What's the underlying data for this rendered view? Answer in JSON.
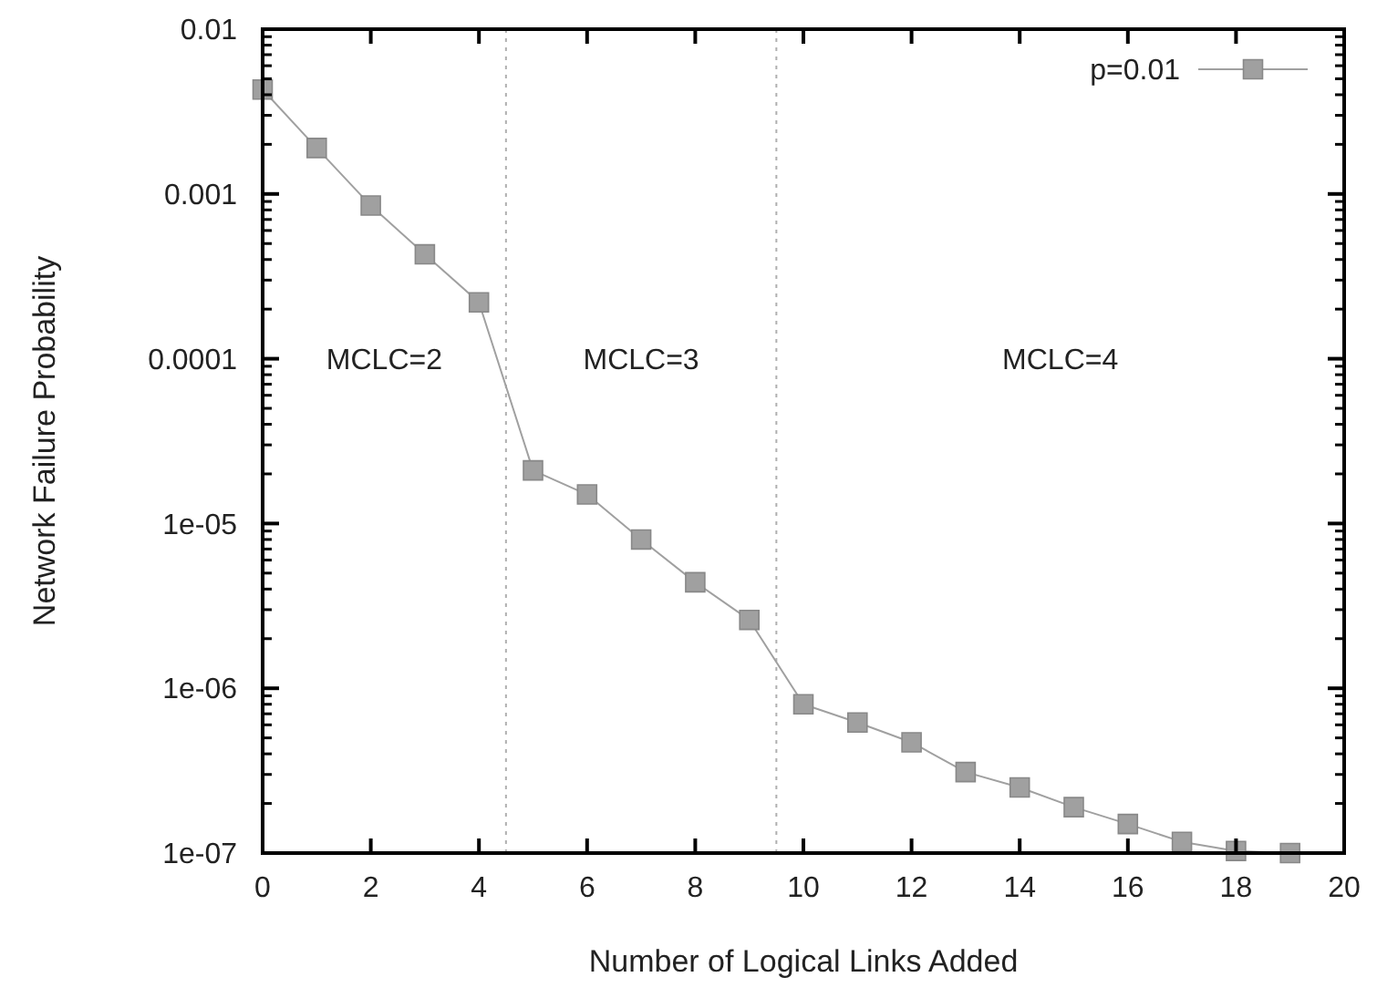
{
  "chart_data": {
    "type": "line",
    "xlabel": "Number of Logical Links Added",
    "ylabel": "Network Failure Probability",
    "x": [
      0,
      1,
      2,
      3,
      4,
      5,
      6,
      7,
      8,
      9,
      10,
      11,
      12,
      13,
      14,
      15,
      16,
      17,
      18,
      19
    ],
    "series": [
      {
        "name": "p=0.01",
        "color": "#a0a0a0",
        "values": [
          0.0043,
          0.0019,
          0.00085,
          0.00043,
          0.00022,
          2.1e-05,
          1.5e-05,
          8e-06,
          4.4e-06,
          2.6e-06,
          8e-07,
          6.2e-07,
          4.7e-07,
          3.1e-07,
          2.5e-07,
          1.9e-07,
          1.5e-07,
          1.17e-07,
          1.03e-07,
          1e-07
        ]
      }
    ],
    "log": "y",
    "xlim": [
      0,
      20
    ],
    "xticks": [
      0,
      2,
      4,
      6,
      8,
      10,
      12,
      14,
      16,
      18,
      20
    ],
    "ylim": [
      1e-07,
      0.01
    ],
    "yticks": [
      {
        "value": 1e-07,
        "label": "1e-07"
      },
      {
        "value": 1e-06,
        "label": "1e-06"
      },
      {
        "value": 1e-05,
        "label": "1e-05"
      },
      {
        "value": 0.0001,
        "label": "0.0001"
      },
      {
        "value": 0.001,
        "label": "0.001"
      },
      {
        "value": 0.01,
        "label": "0.01"
      }
    ],
    "ref_lines": [
      {
        "axis": "x",
        "value": 4.5,
        "color": "#b0b0b0",
        "line_style": "dotted"
      },
      {
        "axis": "x",
        "value": 9.5,
        "color": "#b0b0b0",
        "line_style": "dotted"
      }
    ],
    "annotations": [
      "MCLC=2",
      "MCLC=3",
      "MCLC=4"
    ],
    "marker": "square",
    "line_style": "solid",
    "legend": "top right",
    "grid": false
  }
}
